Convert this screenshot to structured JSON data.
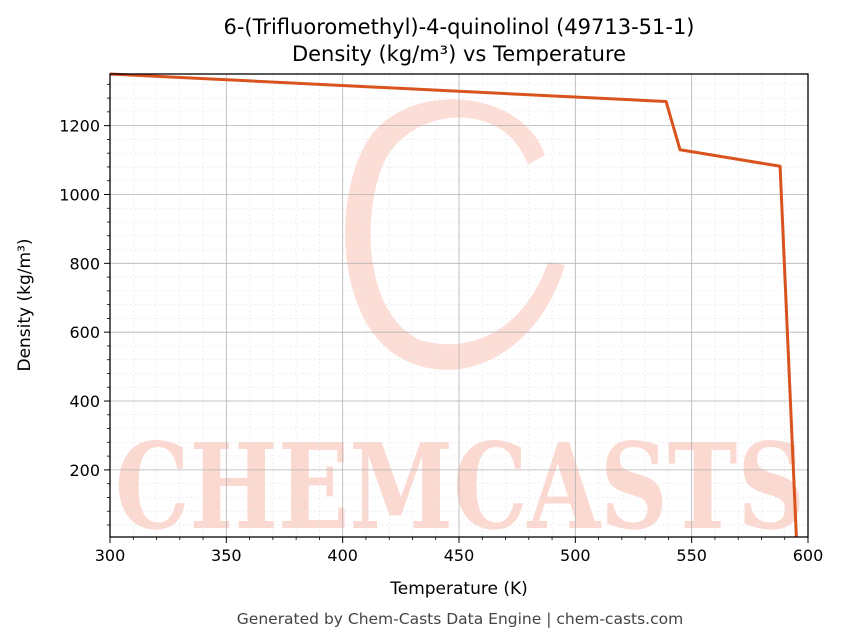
{
  "chart_data": {
    "type": "line",
    "title": "6-(Trifluoromethyl)-4-quinolinol (49713-51-1)",
    "subtitle": "Density (kg/m³) vs Temperature",
    "xlabel": "Temperature (K)",
    "ylabel": "Density (kg/m³)",
    "xlim": [
      300,
      600
    ],
    "ylim": [
      5,
      1350
    ],
    "x_ticks": [
      300,
      350,
      400,
      450,
      500,
      550,
      600
    ],
    "y_ticks": [
      200,
      400,
      600,
      800,
      1000,
      1200
    ],
    "grid": true,
    "series": [
      {
        "color": "#d9531e",
        "x": [
          300,
          539,
          545,
          588,
          595
        ],
        "y": [
          1350,
          1270,
          1130,
          1082,
          5
        ]
      }
    ]
  },
  "watermark": {
    "text": "CHEMCASTS",
    "color": "#fbd8d0"
  },
  "footer": {
    "text": "Generated by Chem-Casts Data Engine | chem-casts.com"
  }
}
